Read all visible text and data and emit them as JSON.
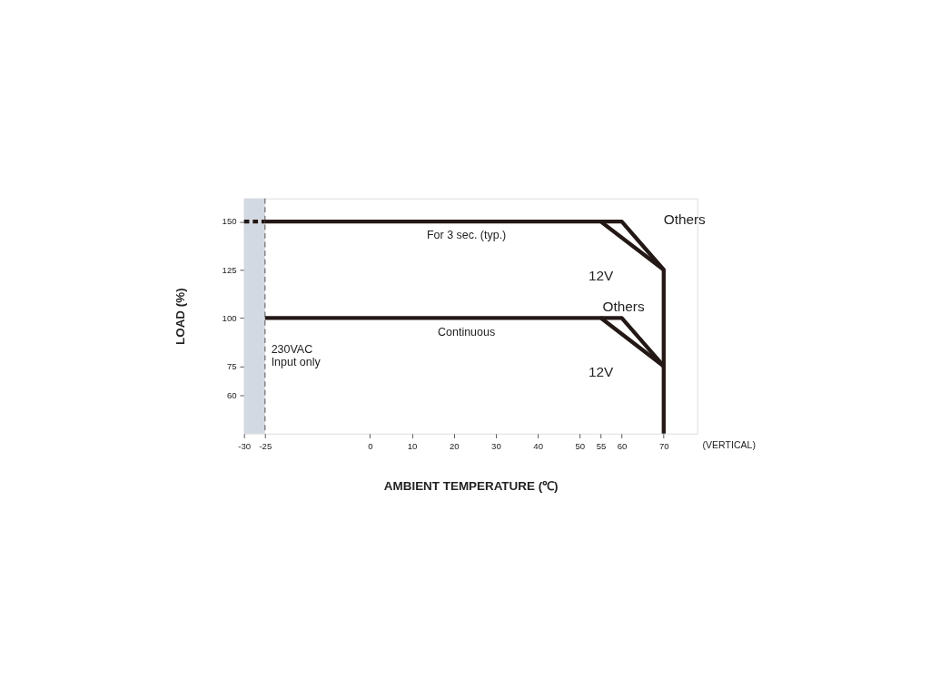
{
  "chart_data": {
    "type": "line",
    "xlabel": "AMBIENT TEMPERATURE (℃)",
    "ylabel": "LOAD (%)",
    "xlim": [
      -30,
      78
    ],
    "xticks": [
      -30,
      -25,
      0,
      10,
      20,
      30,
      40,
      50,
      55,
      60,
      70
    ],
    "ylim": [
      40,
      162
    ],
    "yticks": [
      60,
      75,
      100,
      125,
      150
    ],
    "grid": false,
    "marker": "none",
    "series": [
      {
        "color": "#231815",
        "x": [
          -30,
          -25
        ],
        "values": [
          150,
          150
        ],
        "line_style": "dashed"
      },
      {
        "color": "#231815",
        "x": [
          -25,
          55,
          70,
          70
        ],
        "values": [
          150,
          150,
          125,
          40
        ],
        "line_style": "solid"
      },
      {
        "color": "#231815",
        "x": [
          55,
          60,
          70
        ],
        "values": [
          150,
          150,
          125
        ],
        "line_style": "solid"
      },
      {
        "color": "#231815",
        "x": [
          -25,
          55,
          70
        ],
        "values": [
          100,
          100,
          75
        ],
        "line_style": "solid"
      },
      {
        "color": "#231815",
        "x": [
          55,
          60,
          70
        ],
        "values": [
          100,
          100,
          75
        ],
        "line_style": "solid"
      }
    ],
    "bands": [
      {
        "axis": "x",
        "from": -30,
        "to": -25,
        "color": "#d3d9e2"
      }
    ],
    "ref_lines": [
      {
        "axis": "x",
        "value": -25,
        "color": "#666666",
        "line_style": "dashed"
      }
    ],
    "annotations": [
      {
        "text": "For 3 sec. (typ.)",
        "x": 23,
        "y": 150
      },
      {
        "text": "Continuous",
        "x": 23,
        "y": 100
      },
      {
        "text": "Others",
        "x": 65,
        "y": 137.5
      },
      {
        "text": "12V",
        "x": 62.5,
        "y": 141.7
      },
      {
        "text": "Others",
        "x": 65,
        "y": 87.5
      },
      {
        "text": "12V",
        "x": 62.5,
        "y": 91.7
      },
      "230VAC\nInput only",
      "(VERTICAL)"
    ]
  }
}
